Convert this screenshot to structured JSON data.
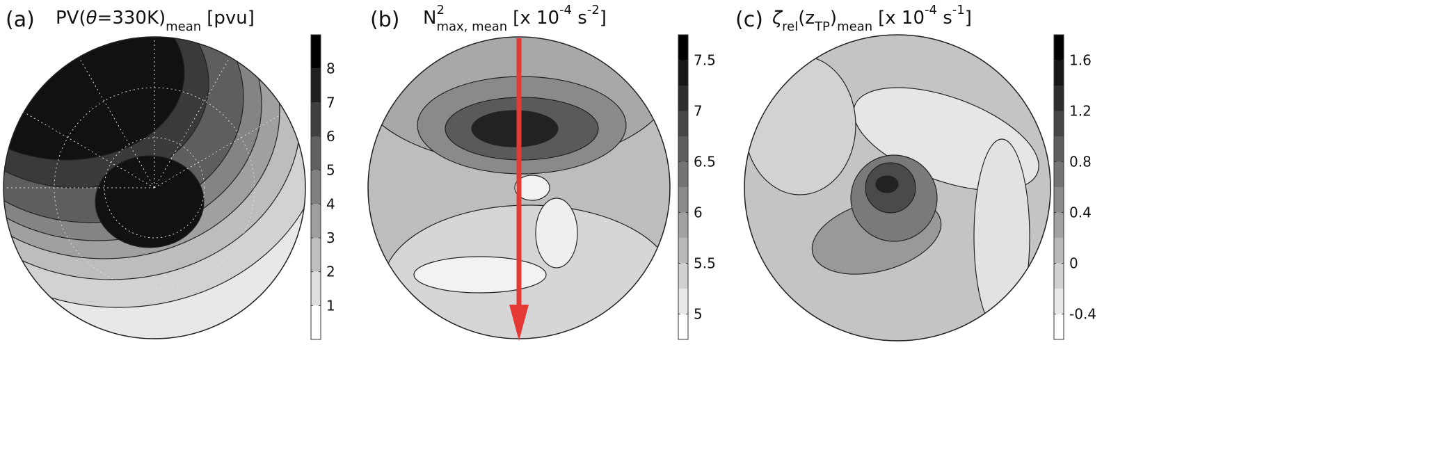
{
  "chart_data": [
    {
      "type": "contour",
      "panel": "(a)",
      "title": [
        {
          "text": "PV("
        },
        {
          "text": "θ",
          "italic": true
        },
        {
          "text": "=330K)"
        },
        {
          "text": "mean",
          "sub": true
        },
        {
          "text": "[pvu]"
        }
      ],
      "clim": [
        0,
        9
      ],
      "level_step": 1,
      "colormap": [
        "#ffffff",
        "#000000"
      ],
      "cticks": [
        1,
        2,
        3,
        4,
        5,
        6,
        7,
        8
      ]
    },
    {
      "type": "contour",
      "panel": "(b)",
      "title": [
        {
          "text": "N"
        },
        {
          "text": "2",
          "sup": true
        },
        {
          "text": "max, mean",
          "sub": true
        },
        {
          "text": "[x 10"
        },
        {
          "text": "-4",
          "sup": true
        },
        {
          "text": " s"
        },
        {
          "text": "-2",
          "sup": true
        },
        {
          "text": "]"
        }
      ],
      "clim": [
        4.75,
        7.75
      ],
      "level_step": 0.25,
      "colormap": [
        "#ffffff",
        "#000000"
      ],
      "cticks": [
        5,
        5.5,
        6,
        6.5,
        7,
        7.5
      ]
    },
    {
      "type": "contour",
      "panel": "(c)",
      "title": [
        {
          "text": "ζ",
          "italic": true
        },
        {
          "text": "rel",
          "sub": true
        },
        {
          "text": "(z"
        },
        {
          "text": "TP",
          "sub": true
        },
        {
          "text": ")"
        },
        {
          "text": "mean",
          "sub": true
        },
        {
          "text": "[x 10"
        },
        {
          "text": "-4",
          "sup": true
        },
        {
          "text": " s"
        },
        {
          "text": "-1",
          "sup": true
        },
        {
          "text": "]"
        }
      ],
      "clim": [
        -0.6,
        1.8
      ],
      "level_step": 0.2,
      "colormap": [
        "#ffffff",
        "#000000"
      ],
      "cticks": [
        -0.4,
        0,
        0.4,
        0.8,
        1.2,
        1.6
      ]
    }
  ]
}
